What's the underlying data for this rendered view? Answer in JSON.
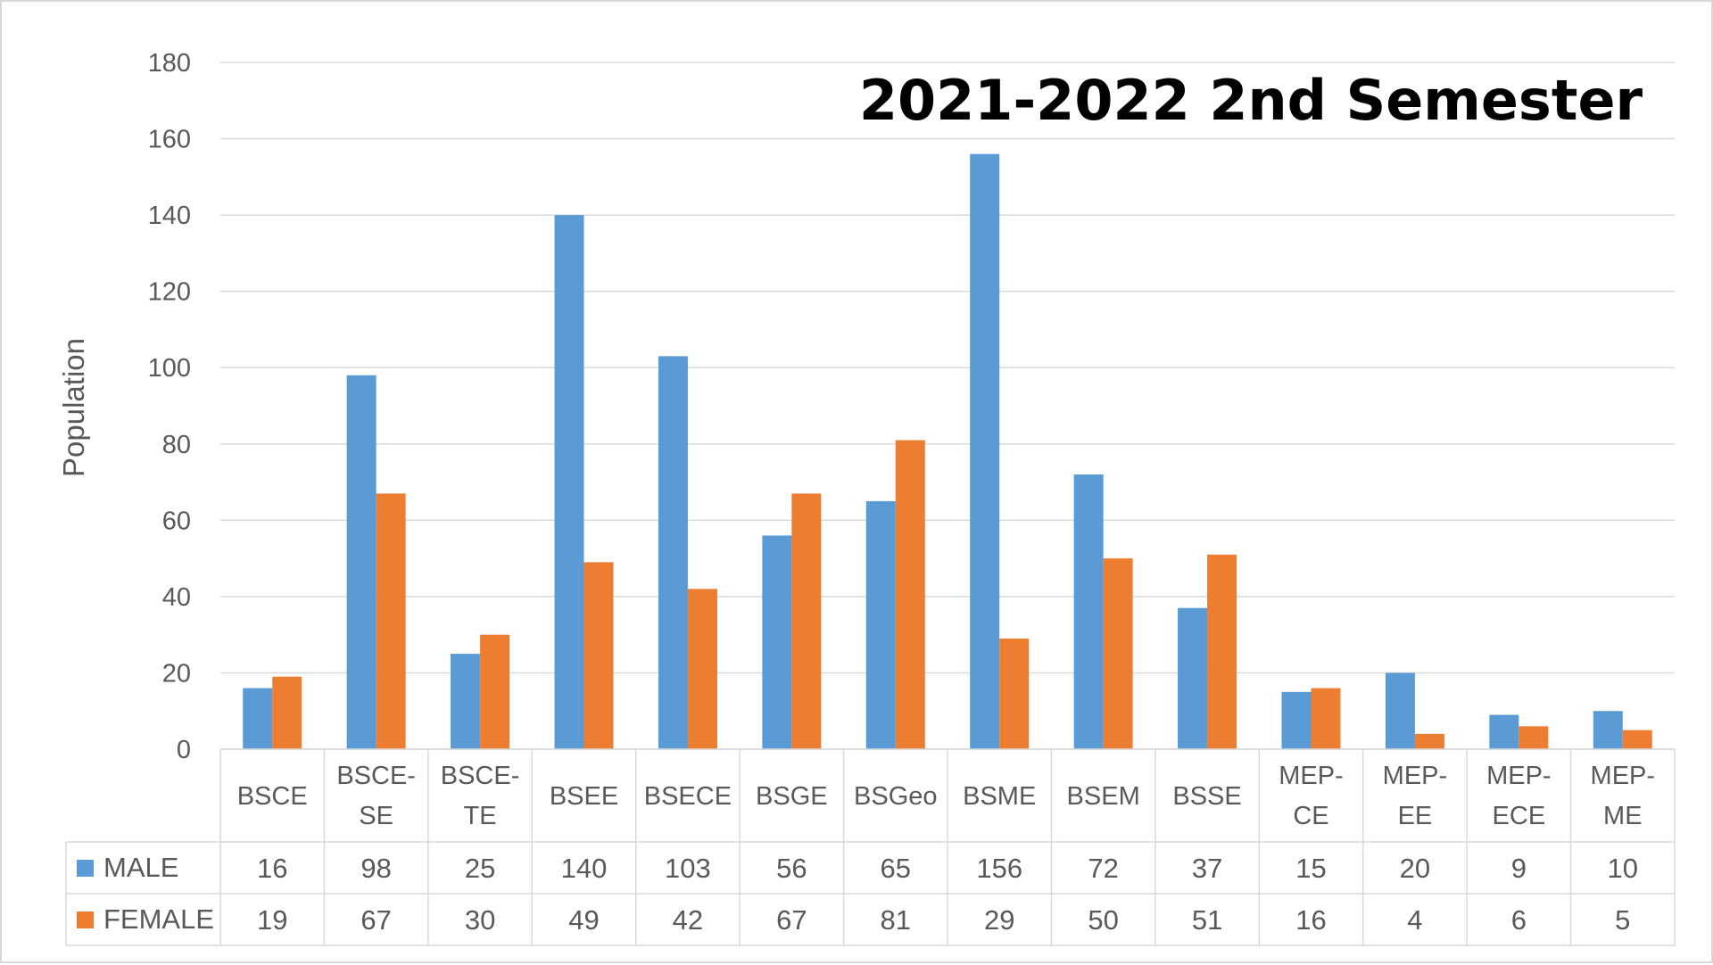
{
  "chart_data": {
    "type": "bar",
    "title": "2021-2022 2nd Semester",
    "xlabel": "",
    "ylabel": "Population",
    "ylim": [
      0,
      180
    ],
    "yticks": [
      0,
      20,
      40,
      60,
      80,
      100,
      120,
      140,
      160,
      180
    ],
    "grid": true,
    "legend": "data-table",
    "categories": [
      [
        "BSCE"
      ],
      [
        "BSCE-",
        "SE"
      ],
      [
        "BSCE-",
        "TE"
      ],
      [
        "BSEE"
      ],
      [
        "BSECE"
      ],
      [
        "BSGE"
      ],
      [
        "BSGeo"
      ],
      [
        "BSME"
      ],
      [
        "BSEM"
      ],
      [
        "BSSE"
      ],
      [
        "MEP-",
        "CE"
      ],
      [
        "MEP-",
        "EE"
      ],
      [
        "MEP-",
        "ECE"
      ],
      [
        "MEP-",
        "ME"
      ]
    ],
    "series": [
      {
        "name": "MALE",
        "color": "#5b9bd5",
        "values": [
          16,
          98,
          25,
          140,
          103,
          56,
          65,
          156,
          72,
          37,
          15,
          20,
          9,
          10
        ]
      },
      {
        "name": "FEMALE",
        "color": "#ed7d31",
        "values": [
          19,
          67,
          30,
          49,
          42,
          67,
          81,
          29,
          50,
          51,
          16,
          4,
          6,
          5
        ]
      }
    ]
  }
}
